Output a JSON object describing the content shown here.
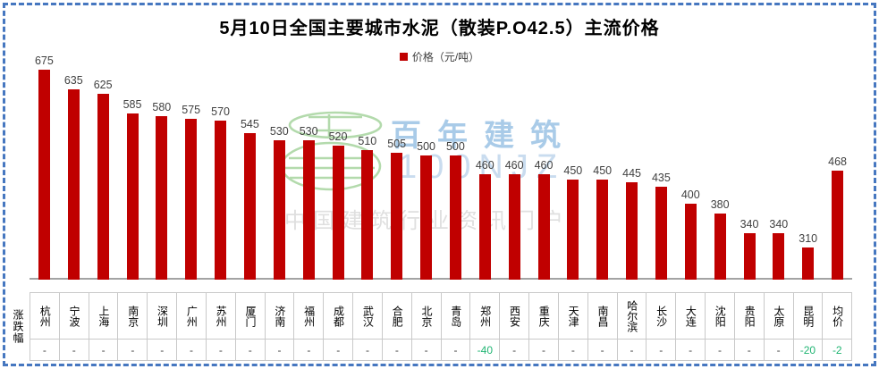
{
  "title": "5月10日全国主要城市水泥（散装P.O42.5）主流价格",
  "legend": {
    "label": "价格（元/吨）",
    "swatch_color": "#C00000"
  },
  "table": {
    "row_label": "涨跌幅"
  },
  "watermark": {
    "brand": "百年建筑",
    "site": "100NJZ",
    "slogan": "中国建筑行业资讯门户",
    "logo": "bainian-jianzhu-globe-logo"
  },
  "colors": {
    "bar": "#C00000",
    "value_label": "#404040",
    "change_negative": "#21B573",
    "table_border": "#C9C9C9",
    "axis_line": "#A3A3A3",
    "frame_dashed": "#4677C0",
    "watermark_green": "#ABD7A4",
    "watermark_blue": "#A9CBE8",
    "watermark_gray": "#DFDFDF"
  },
  "chart_data": {
    "type": "bar",
    "title": "5月10日全国主要城市水泥（散装P.O42.5）主流价格",
    "series_name": "价格（元/吨）",
    "legend_position": "top",
    "grid": false,
    "ylim": [
      245,
      690
    ],
    "categories": [
      "杭州",
      "宁波",
      "上海",
      "南京",
      "深圳",
      "广州",
      "苏州",
      "厦门",
      "济南",
      "福州",
      "成都",
      "武汉",
      "合肥",
      "北京",
      "青岛",
      "郑州",
      "西安",
      "重庆",
      "天津",
      "南昌",
      "哈尔滨",
      "长沙",
      "大连",
      "沈阳",
      "贵阳",
      "太原",
      "昆明",
      "均价"
    ],
    "values": [
      675,
      635,
      625,
      585,
      580,
      575,
      570,
      545,
      530,
      530,
      520,
      510,
      505,
      500,
      500,
      460,
      460,
      460,
      450,
      450,
      445,
      435,
      400,
      380,
      340,
      340,
      310,
      468
    ],
    "changes": [
      "-",
      "-",
      "-",
      "-",
      "-",
      "-",
      "-",
      "-",
      "-",
      "-",
      "-",
      "-",
      "-",
      "-",
      "-",
      "-40",
      "-",
      "-",
      "-",
      "-",
      "-",
      "-",
      "-",
      "-",
      "-",
      "-",
      "-20",
      "-2"
    ],
    "change_row_label": "涨跌幅"
  }
}
